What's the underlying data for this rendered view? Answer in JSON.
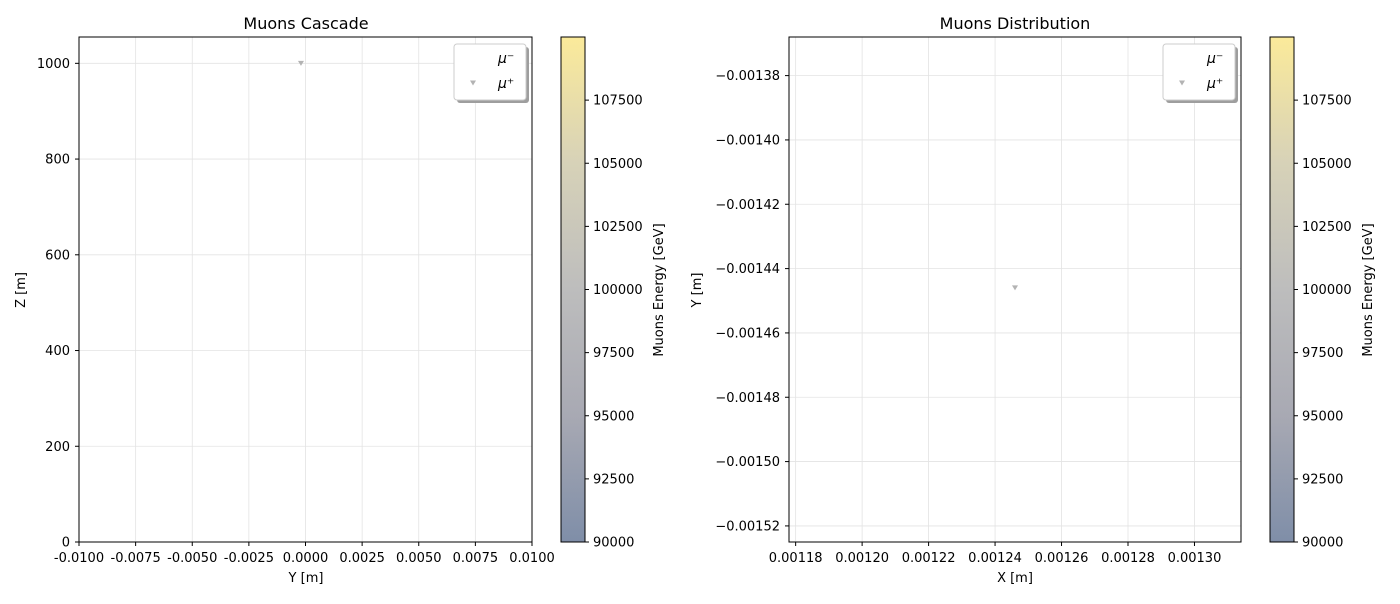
{
  "chart_data": [
    {
      "type": "scatter",
      "title": "Muons Cascade",
      "xlabel": "Y [m]",
      "ylabel": "Z [m]",
      "xlim": [
        -0.01,
        0.01
      ],
      "ylim": [
        0,
        1055
      ],
      "xticks": [
        "-0.0100",
        "-0.0075",
        "-0.0050",
        "-0.0025",
        "0.0000",
        "0.0025",
        "0.0050",
        "0.0075",
        "0.0100"
      ],
      "xtick_values": [
        -0.01,
        -0.0075,
        -0.005,
        -0.0025,
        0,
        0.0025,
        0.005,
        0.0075,
        0.01
      ],
      "yticks": [
        "0",
        "200",
        "400",
        "600",
        "800",
        "1000"
      ],
      "ytick_values": [
        0,
        200,
        400,
        600,
        800,
        1000
      ],
      "grid": true,
      "legend": {
        "placement": "top-right",
        "entries": [
          {
            "label": "μ⁻",
            "marker": "none"
          },
          {
            "label": "μ⁺",
            "marker": "triangle-down"
          }
        ]
      },
      "series": [
        {
          "name": "μ⁻",
          "x": [],
          "y": [],
          "energy": []
        },
        {
          "name": "μ⁺",
          "x": [
            -0.0002
          ],
          "y": [
            1000
          ],
          "energy": [
            100000
          ]
        }
      ],
      "colorbar": {
        "label": "Muons Energy [GeV]",
        "range": [
          90000,
          110000
        ],
        "ticks": [
          "90000",
          "92500",
          "95000",
          "97500",
          "100000",
          "102500",
          "105000",
          "107500"
        ],
        "tick_values": [
          90000,
          92500,
          95000,
          97500,
          100000,
          102500,
          105000,
          107500
        ],
        "colors": [
          "#7f8ea8",
          "#a8a9b3",
          "#bdbdbd",
          "#d7d2b8",
          "#fbea9a"
        ]
      }
    },
    {
      "type": "scatter",
      "title": "Muons Distribution",
      "xlabel": "X [m]",
      "ylabel": "Y [m]",
      "xlim": [
        0.001178,
        0.001314
      ],
      "ylim": [
        -0.001525,
        -0.001368
      ],
      "xticks": [
        "0.00118",
        "0.00120",
        "0.00122",
        "0.00124",
        "0.00126",
        "0.00128",
        "0.00130"
      ],
      "xtick_values": [
        0.00118,
        0.0012,
        0.00122,
        0.00124,
        0.00126,
        0.00128,
        0.0013
      ],
      "yticks": [
        "−0.00138",
        "−0.00140",
        "−0.00142",
        "−0.00144",
        "−0.00146",
        "−0.00148",
        "−0.00150",
        "−0.00152"
      ],
      "ytick_values": [
        -0.00138,
        -0.0014,
        -0.00142,
        -0.00144,
        -0.00146,
        -0.00148,
        -0.0015,
        -0.00152
      ],
      "grid": true,
      "legend": {
        "placement": "top-right",
        "entries": [
          {
            "label": "μ⁻",
            "marker": "none"
          },
          {
            "label": "μ⁺",
            "marker": "triangle-down"
          }
        ]
      },
      "series": [
        {
          "name": "μ⁻",
          "x": [],
          "y": [],
          "energy": []
        },
        {
          "name": "μ⁺",
          "x": [
            0.001246
          ],
          "y": [
            -0.001446
          ],
          "energy": [
            100000
          ]
        }
      ],
      "colorbar": {
        "label": "Muons Energy [GeV]",
        "range": [
          90000,
          110000
        ],
        "ticks": [
          "90000",
          "92500",
          "95000",
          "97500",
          "100000",
          "102500",
          "105000",
          "107500"
        ],
        "tick_values": [
          90000,
          92500,
          95000,
          97500,
          100000,
          102500,
          105000,
          107500
        ],
        "colors": [
          "#7f8ea8",
          "#a8a9b3",
          "#bdbdbd",
          "#d7d2b8",
          "#fbea9a"
        ]
      }
    }
  ]
}
